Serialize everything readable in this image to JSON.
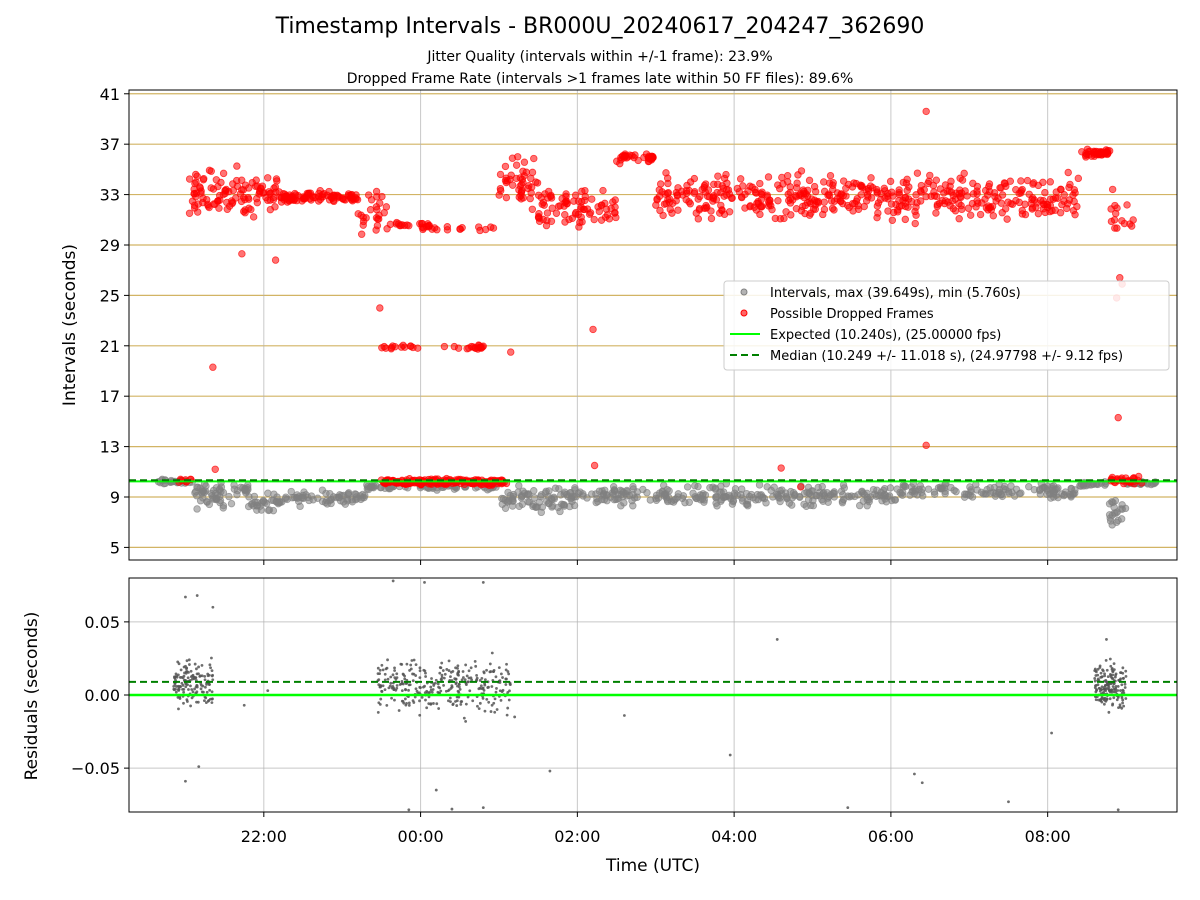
{
  "title": "Timestamp Intervals - BR000U_20240617_204247_362690",
  "subtitle_lines": [
    "Jitter Quality (intervals within +/-1 frame): 23.9%",
    "Dropped Frame Rate (intervals >1 frames late within 50 FF files): 89.6%"
  ],
  "colors": {
    "intervals": "#808080",
    "dropped": "#ff0000",
    "expected": "#00ff00",
    "median": "#008000",
    "hgrid_top": "#d2b464",
    "grid": "#b0b0b0"
  },
  "chart_data": [
    {
      "type": "scatter",
      "ylabel": "Intervals (seconds)",
      "x_axis": "time_hours_utc",
      "xlim": [
        20.28,
        33.65
      ],
      "ylim": [
        4.0,
        41.3
      ],
      "yticks": [
        "5",
        "9",
        "13",
        "17",
        "21",
        "25",
        "29",
        "33",
        "37",
        "41"
      ],
      "grid": "on",
      "legend_position": "right",
      "legend": [
        "Intervals, max (39.649s), min (5.760s)",
        "Possible Dropped Frames",
        "Expected (10.240s), (25.00000 fps)",
        "Median (10.249 +/- 11.018 s), (24.97798 +/- 9.12 fps)"
      ],
      "reference_lines": {
        "expected": 10.24,
        "median": 10.249
      },
      "stats": {
        "max": 39.649,
        "min": 5.76
      },
      "series": [
        {
          "name": "Intervals, max (39.649s), min (5.760s)",
          "segments": [
            {
              "x": [
                20.6,
                21.1
              ],
              "y_center": 10.2,
              "spread": 0.3,
              "n": 25
            },
            {
              "x": [
                21.1,
                21.6
              ],
              "y_center": 9.1,
              "spread": 1.4,
              "n": 45
            },
            {
              "x": [
                21.6,
                21.8
              ],
              "y_center": 9.6,
              "spread": 0.6,
              "n": 15
            },
            {
              "x": [
                21.8,
                22.2
              ],
              "y_center": 8.6,
              "spread": 1.0,
              "n": 30
            },
            {
              "x": [
                22.2,
                23.3
              ],
              "y_center": 8.9,
              "spread": 0.8,
              "n": 65
            },
            {
              "x": [
                23.3,
                25.0
              ],
              "y_center": 9.8,
              "spread": 0.3,
              "n": 70
            },
            {
              "x": [
                25.0,
                26.0
              ],
              "y_center": 8.9,
              "spread": 1.3,
              "n": 80
            },
            {
              "x": [
                26.0,
                30.1
              ],
              "y_center": 9.1,
              "spread": 1.1,
              "n": 260
            },
            {
              "x": [
                30.1,
                32.4
              ],
              "y_center": 9.4,
              "spread": 0.9,
              "n": 120
            },
            {
              "x": [
                32.4,
                32.75
              ],
              "y_center": 10.0,
              "spread": 0.3,
              "n": 20
            },
            {
              "x": [
                32.75,
                33.0
              ],
              "y_center": 7.8,
              "spread": 1.7,
              "n": 20
            },
            {
              "x": [
                33.0,
                33.4
              ],
              "y_center": 10.1,
              "spread": 0.2,
              "n": 25
            }
          ]
        },
        {
          "name": "Possible Dropped Frames",
          "segments": [
            {
              "x": [
                20.9,
                21.1
              ],
              "y_center": 10.3,
              "spread": 0.2,
              "n": 8
            },
            {
              "x": [
                21.05,
                22.2
              ],
              "y_center": 33.0,
              "spread": 2.6,
              "n": 110
            },
            {
              "x": [
                22.2,
                23.2
              ],
              "y_center": 32.8,
              "spread": 0.6,
              "n": 90
            },
            {
              "x": [
                23.2,
                23.6
              ],
              "y_center": 31.5,
              "spread": 2.3,
              "n": 25
            },
            {
              "x": [
                23.6,
                24.2
              ],
              "y_center": 30.6,
              "spread": 0.25,
              "n": 18
            },
            {
              "x": [
                23.5,
                24.05
              ],
              "y_center": 20.9,
              "spread": 0.25,
              "n": 14
            },
            {
              "x": [
                24.3,
                24.8
              ],
              "y_center": 20.9,
              "spread": 0.25,
              "n": 18
            },
            {
              "x": [
                23.5,
                25.1
              ],
              "y_center": 10.2,
              "spread": 0.35,
              "n": 220
            },
            {
              "x": [
                24.0,
                25.0
              ],
              "y_center": 30.3,
              "spread": 0.3,
              "n": 16
            },
            {
              "x": [
                25.0,
                25.5
              ],
              "y_center": 34.0,
              "spread": 2.5,
              "n": 45
            },
            {
              "x": [
                25.5,
                26.5
              ],
              "y_center": 32.0,
              "spread": 2.5,
              "n": 80
            },
            {
              "x": [
                26.5,
                27.0
              ],
              "y_center": 35.9,
              "spread": 0.6,
              "n": 35
            },
            {
              "x": [
                27.0,
                32.4
              ],
              "y_center": 32.8,
              "spread": 2.4,
              "n": 460
            },
            {
              "x": [
                32.4,
                32.8
              ],
              "y_center": 36.3,
              "spread": 0.4,
              "n": 40
            },
            {
              "x": [
                32.8,
                33.1
              ],
              "y_center": 31.5,
              "spread": 2.5,
              "n": 15
            },
            {
              "x": [
                32.8,
                33.2
              ],
              "y_center": 10.3,
              "spread": 0.4,
              "n": 30
            }
          ],
          "outliers": [
            {
              "x": 21.35,
              "y": 19.3
            },
            {
              "x": 21.38,
              "y": 11.2
            },
            {
              "x": 21.72,
              "y": 28.3
            },
            {
              "x": 22.15,
              "y": 27.8
            },
            {
              "x": 23.48,
              "y": 24.0
            },
            {
              "x": 25.15,
              "y": 20.5
            },
            {
              "x": 26.2,
              "y": 22.3
            },
            {
              "x": 26.22,
              "y": 11.5
            },
            {
              "x": 28.6,
              "y": 11.3
            },
            {
              "x": 28.85,
              "y": 9.8
            },
            {
              "x": 30.45,
              "y": 39.6
            },
            {
              "x": 30.45,
              "y": 13.1
            },
            {
              "x": 32.9,
              "y": 15.3
            },
            {
              "x": 32.92,
              "y": 26.4
            },
            {
              "x": 32.95,
              "y": 25.9
            },
            {
              "x": 32.88,
              "y": 24.8
            }
          ]
        }
      ]
    },
    {
      "type": "scatter",
      "ylabel": "Residuals (seconds)",
      "xlabel": "Time (UTC)",
      "x_axis": "time_hours_utc",
      "xlim": [
        20.28,
        33.65
      ],
      "ylim": [
        -0.08,
        0.08
      ],
      "yticks": [
        "−0.05",
        "0.00",
        "0.05"
      ],
      "xticks": [
        "22:00",
        "00:00",
        "02:00",
        "04:00",
        "06:00",
        "08:00"
      ],
      "grid": "on",
      "reference_lines": {
        "expected": 0.0,
        "median": 0.009
      },
      "series": [
        {
          "name": "residuals",
          "segments": [
            {
              "x": [
                20.85,
                21.35
              ],
              "y_center": 0.008,
              "spread": 0.022,
              "n": 150
            },
            {
              "x": [
                23.45,
                25.15
              ],
              "y_center": 0.006,
              "spread": 0.028,
              "n": 320
            },
            {
              "x": [
                32.6,
                33.0
              ],
              "y_center": 0.006,
              "spread": 0.022,
              "n": 170
            }
          ],
          "outliers": [
            {
              "x": 21.0,
              "y": 0.067
            },
            {
              "x": 21.15,
              "y": 0.068
            },
            {
              "x": 21.35,
              "y": 0.06
            },
            {
              "x": 21.17,
              "y": -0.049
            },
            {
              "x": 21.0,
              "y": -0.059
            },
            {
              "x": 21.75,
              "y": -0.007
            },
            {
              "x": 22.05,
              "y": 0.003
            },
            {
              "x": 25.2,
              "y": -0.015
            },
            {
              "x": 26.6,
              "y": -0.014
            },
            {
              "x": 25.65,
              "y": -0.052
            },
            {
              "x": 27.95,
              "y": -0.041
            },
            {
              "x": 28.55,
              "y": 0.038
            },
            {
              "x": 29.45,
              "y": -0.077
            },
            {
              "x": 30.3,
              "y": -0.054
            },
            {
              "x": 30.4,
              "y": -0.06
            },
            {
              "x": 31.5,
              "y": -0.073
            },
            {
              "x": 32.05,
              "y": -0.026
            },
            {
              "x": 32.75,
              "y": 0.038
            },
            {
              "x": 32.9,
              "y": -0.079
            },
            {
              "x": 23.65,
              "y": 0.078
            },
            {
              "x": 24.05,
              "y": 0.077
            },
            {
              "x": 24.8,
              "y": 0.077
            },
            {
              "x": 23.85,
              "y": -0.079
            },
            {
              "x": 24.4,
              "y": -0.078
            },
            {
              "x": 24.8,
              "y": -0.077
            },
            {
              "x": 24.2,
              "y": -0.065
            }
          ]
        }
      ]
    }
  ]
}
